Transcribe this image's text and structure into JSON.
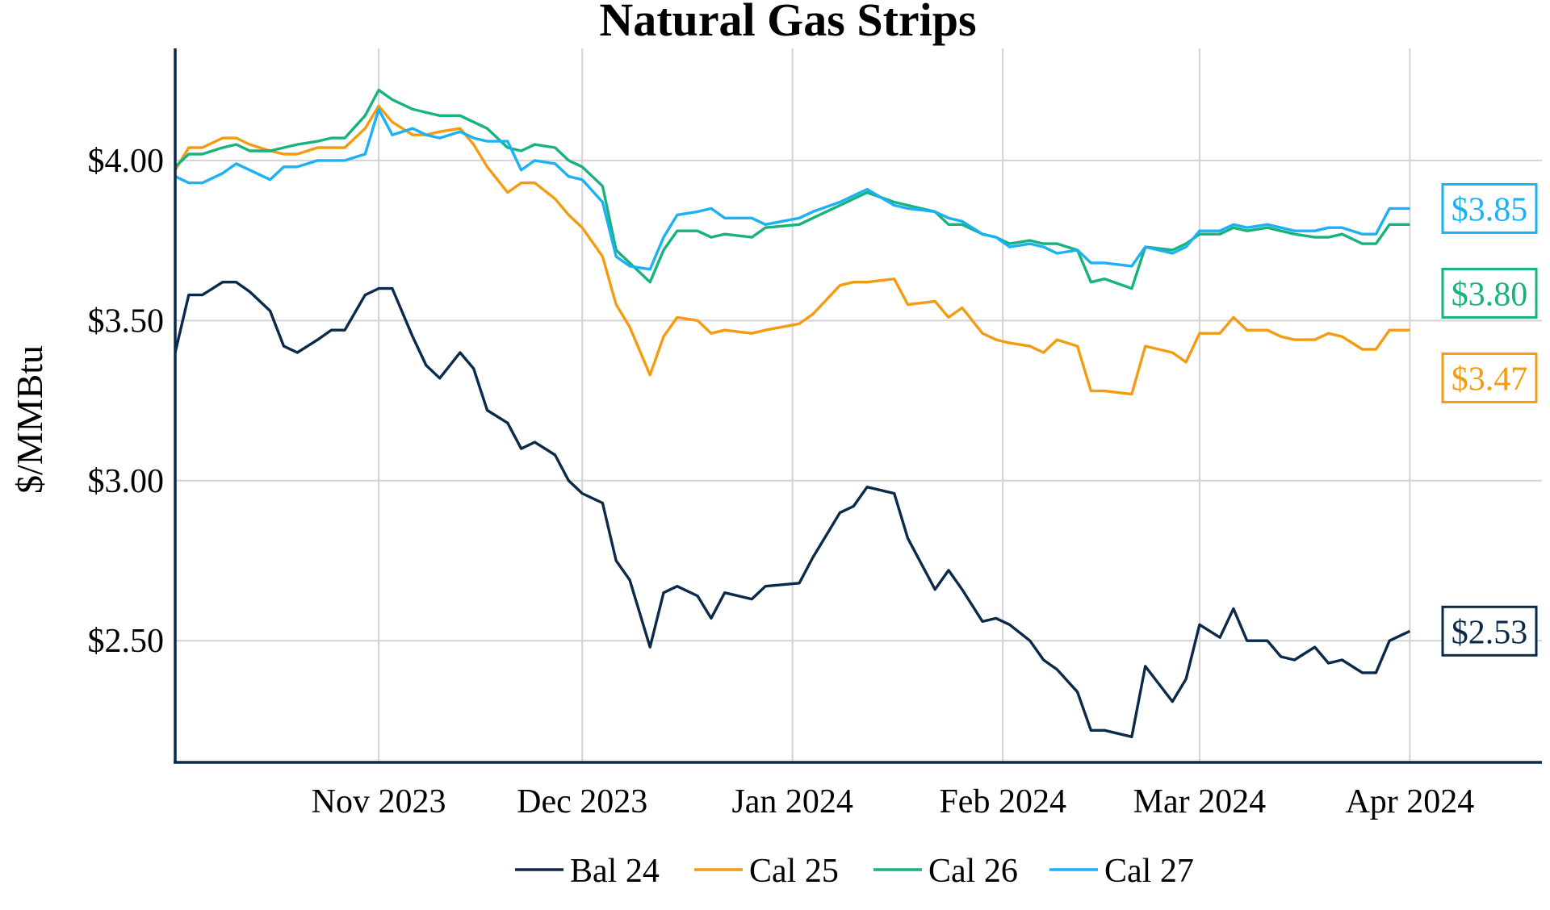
{
  "chart_data": {
    "type": "line",
    "title": "Natural Gas Strips",
    "ylabel": "$/MMBtu",
    "xlabel": "",
    "ylim": [
      2.12,
      4.35
    ],
    "yticks": [
      {
        "value": 2.5,
        "label": "$2.50"
      },
      {
        "value": 3.0,
        "label": "$3.00"
      },
      {
        "value": 3.5,
        "label": "$3.50"
      },
      {
        "value": 4.0,
        "label": "$4.00"
      }
    ],
    "xlim": [
      "2023-10-02",
      "2024-04-05"
    ],
    "xticks": [
      {
        "date": "2023-11-01",
        "label": "Nov 2023"
      },
      {
        "date": "2023-12-01",
        "label": "Dec 2023"
      },
      {
        "date": "2024-01-01",
        "label": "Jan 2024"
      },
      {
        "date": "2024-02-01",
        "label": "Feb 2024"
      },
      {
        "date": "2024-03-01",
        "label": "Mar 2024"
      },
      {
        "date": "2024-04-01",
        "label": "Apr 2024"
      }
    ],
    "grid": true,
    "legend": "bottom",
    "x": [
      "2023-10-02",
      "2023-10-04",
      "2023-10-06",
      "2023-10-09",
      "2023-10-11",
      "2023-10-13",
      "2023-10-16",
      "2023-10-18",
      "2023-10-20",
      "2023-10-23",
      "2023-10-25",
      "2023-10-27",
      "2023-10-30",
      "2023-11-01",
      "2023-11-03",
      "2023-11-06",
      "2023-11-08",
      "2023-11-10",
      "2023-11-13",
      "2023-11-15",
      "2023-11-17",
      "2023-11-20",
      "2023-11-22",
      "2023-11-24",
      "2023-11-27",
      "2023-11-29",
      "2023-12-01",
      "2023-12-04",
      "2023-12-06",
      "2023-12-08",
      "2023-12-11",
      "2023-12-13",
      "2023-12-15",
      "2023-12-18",
      "2023-12-20",
      "2023-12-22",
      "2023-12-26",
      "2023-12-28",
      "2024-01-02",
      "2024-01-04",
      "2024-01-08",
      "2024-01-10",
      "2024-01-12",
      "2024-01-16",
      "2024-01-18",
      "2024-01-22",
      "2024-01-24",
      "2024-01-26",
      "2024-01-29",
      "2024-01-31",
      "2024-02-02",
      "2024-02-05",
      "2024-02-07",
      "2024-02-09",
      "2024-02-12",
      "2024-02-14",
      "2024-02-16",
      "2024-02-20",
      "2024-02-22",
      "2024-02-26",
      "2024-02-28",
      "2024-03-01",
      "2024-03-04",
      "2024-03-06",
      "2024-03-08",
      "2024-03-11",
      "2024-03-13",
      "2024-03-15",
      "2024-03-18",
      "2024-03-20",
      "2024-03-22",
      "2024-03-25",
      "2024-03-27",
      "2024-03-29",
      "2024-04-01"
    ],
    "series": [
      {
        "name": "Bal 24",
        "color": "#0b2a4a",
        "end_label": "$2.53",
        "values": [
          3.4,
          3.58,
          3.58,
          3.62,
          3.62,
          3.59,
          3.53,
          3.42,
          3.4,
          3.44,
          3.47,
          3.47,
          3.58,
          3.6,
          3.6,
          3.45,
          3.36,
          3.32,
          3.4,
          3.35,
          3.22,
          3.18,
          3.1,
          3.12,
          3.08,
          3.0,
          2.96,
          2.93,
          2.75,
          2.69,
          2.48,
          2.65,
          2.67,
          2.64,
          2.57,
          2.65,
          2.63,
          2.67,
          2.68,
          2.76,
          2.9,
          2.92,
          2.98,
          2.96,
          2.82,
          2.66,
          2.72,
          2.66,
          2.56,
          2.57,
          2.55,
          2.5,
          2.44,
          2.41,
          2.34,
          2.22,
          2.22,
          2.2,
          2.42,
          2.31,
          2.38,
          2.55,
          2.51,
          2.6,
          2.5,
          2.5,
          2.45,
          2.44,
          2.48,
          2.43,
          2.44,
          2.4,
          2.4,
          2.5,
          2.53
        ]
      },
      {
        "name": "Cal 25",
        "color": "#f39c12",
        "end_label": "$3.47",
        "values": [
          3.97,
          4.04,
          4.04,
          4.07,
          4.07,
          4.05,
          4.03,
          4.02,
          4.02,
          4.04,
          4.04,
          4.04,
          4.1,
          4.17,
          4.12,
          4.08,
          4.08,
          4.09,
          4.1,
          4.05,
          3.98,
          3.9,
          3.93,
          3.93,
          3.88,
          3.83,
          3.79,
          3.7,
          3.55,
          3.48,
          3.33,
          3.45,
          3.51,
          3.5,
          3.46,
          3.47,
          3.46,
          3.47,
          3.49,
          3.52,
          3.61,
          3.62,
          3.62,
          3.63,
          3.55,
          3.56,
          3.51,
          3.54,
          3.46,
          3.44,
          3.43,
          3.42,
          3.4,
          3.44,
          3.42,
          3.28,
          3.28,
          3.27,
          3.42,
          3.4,
          3.37,
          3.46,
          3.46,
          3.51,
          3.47,
          3.47,
          3.45,
          3.44,
          3.44,
          3.46,
          3.45,
          3.41,
          3.41,
          3.47,
          3.47
        ]
      },
      {
        "name": "Cal 26",
        "color": "#16b37c",
        "end_label": "$3.80",
        "values": [
          3.98,
          4.02,
          4.02,
          4.04,
          4.05,
          4.03,
          4.03,
          4.04,
          4.05,
          4.06,
          4.07,
          4.07,
          4.14,
          4.22,
          4.19,
          4.16,
          4.15,
          4.14,
          4.14,
          4.12,
          4.1,
          4.04,
          4.03,
          4.05,
          4.04,
          4.0,
          3.98,
          3.92,
          3.72,
          3.68,
          3.62,
          3.72,
          3.78,
          3.78,
          3.76,
          3.77,
          3.76,
          3.79,
          3.8,
          3.82,
          3.86,
          3.88,
          3.9,
          3.87,
          3.86,
          3.84,
          3.8,
          3.8,
          3.77,
          3.76,
          3.74,
          3.75,
          3.74,
          3.74,
          3.72,
          3.62,
          3.63,
          3.6,
          3.73,
          3.72,
          3.74,
          3.77,
          3.77,
          3.79,
          3.78,
          3.79,
          3.78,
          3.77,
          3.76,
          3.76,
          3.77,
          3.74,
          3.74,
          3.8,
          3.8
        ]
      },
      {
        "name": "Cal 27",
        "color": "#1ab1f5",
        "end_label": "$3.85",
        "values": [
          3.95,
          3.93,
          3.93,
          3.96,
          3.99,
          3.97,
          3.94,
          3.98,
          3.98,
          4.0,
          4.0,
          4.0,
          4.02,
          4.16,
          4.08,
          4.1,
          4.08,
          4.07,
          4.09,
          4.07,
          4.06,
          4.06,
          3.97,
          4.0,
          3.99,
          3.95,
          3.94,
          3.87,
          3.7,
          3.67,
          3.66,
          3.76,
          3.83,
          3.84,
          3.85,
          3.82,
          3.82,
          3.8,
          3.82,
          3.84,
          3.87,
          3.89,
          3.91,
          3.86,
          3.85,
          3.84,
          3.82,
          3.81,
          3.77,
          3.76,
          3.73,
          3.74,
          3.73,
          3.71,
          3.72,
          3.68,
          3.68,
          3.67,
          3.73,
          3.71,
          3.73,
          3.78,
          3.78,
          3.8,
          3.79,
          3.8,
          3.79,
          3.78,
          3.78,
          3.79,
          3.79,
          3.77,
          3.77,
          3.85,
          3.85
        ]
      }
    ]
  }
}
